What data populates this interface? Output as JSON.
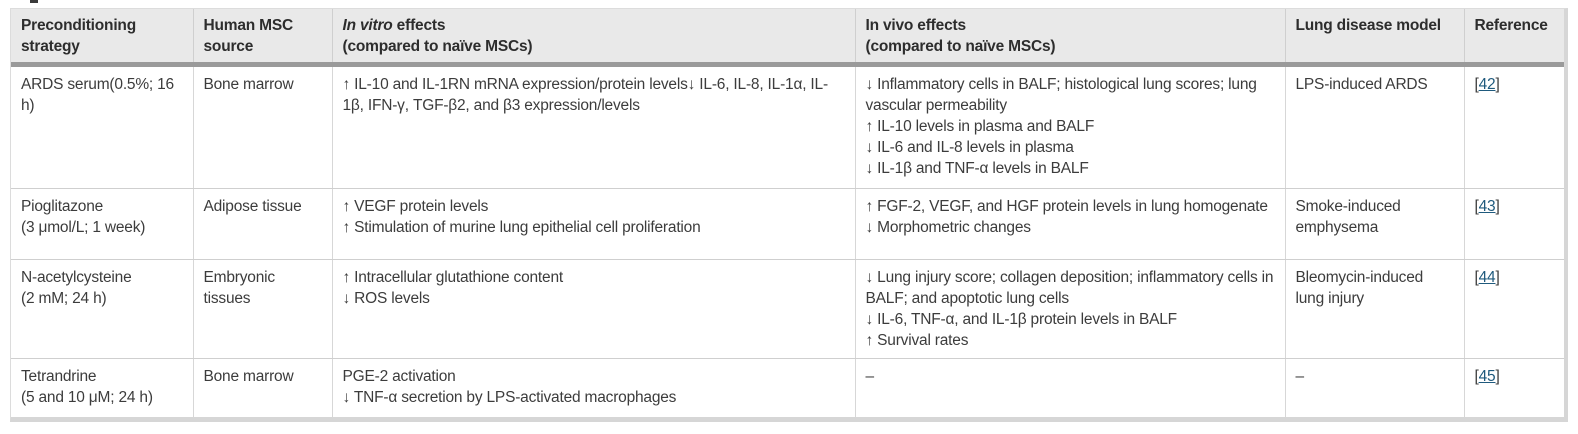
{
  "colors": {
    "link": "#1f5a7d",
    "header_bg": "#e9e9e9",
    "header_rule": "#9a9a9a"
  },
  "table": {
    "headers": [
      {
        "label": "Preconditioning strategy"
      },
      {
        "label": "Human MSC source"
      },
      {
        "label_italic": "In vitro",
        "label_rest": " effects",
        "sub": "(compared to naïve MSCs)"
      },
      {
        "label": "In vivo effects",
        "sub": "(compared to naïve MSCs)"
      },
      {
        "label": "Lung disease model"
      },
      {
        "label": "Reference"
      }
    ],
    "rows": [
      {
        "strategy": [
          "ARDS serum(0.5%; 16 h)"
        ],
        "source": [
          "Bone marrow"
        ],
        "in_vitro": [
          "↑ IL-10 and IL-1RN mRNA expression/protein levels↓ IL-6, IL-8, IL-1α, IL-1β, IFN-γ, TGF-β2, and β3 expression/levels"
        ],
        "in_vivo": [
          "↓ Inflammatory cells in BALF; histological lung scores; lung vascular permeability",
          "↑ IL-10 levels in plasma and BALF",
          "↓ IL-6 and IL-8 levels in plasma",
          "↓ IL-1β and TNF-α levels in BALF"
        ],
        "model": [
          "LPS-induced ARDS"
        ],
        "reference": {
          "prefix": "[",
          "number": "42",
          "suffix": "]"
        }
      },
      {
        "strategy": [
          "Pioglitazone",
          "(3 μmol/L; 1 week)"
        ],
        "source": [
          "Adipose tissue"
        ],
        "in_vitro": [
          "↑ VEGF protein levels",
          "↑ Stimulation of murine lung epithelial cell proliferation"
        ],
        "in_vivo": [
          "↑ FGF-2, VEGF, and HGF protein levels in lung homogenate",
          "↓ Morphometric changes"
        ],
        "model": [
          "Smoke-induced emphysema"
        ],
        "reference": {
          "prefix": "[",
          "number": "43",
          "suffix": "]"
        }
      },
      {
        "strategy": [
          "N-acetylcysteine",
          "(2 mM; 24 h)"
        ],
        "source": [
          "Embryonic tissues"
        ],
        "in_vitro": [
          "↑ Intracellular glutathione content",
          "↓ ROS levels"
        ],
        "in_vivo": [
          "↓ Lung injury score; collagen deposition; inflammatory cells in BALF; and apoptotic lung cells",
          "↓ IL-6, TNF-α, and IL-1β protein levels in BALF",
          "↑ Survival rates"
        ],
        "model": [
          "Bleomycin-induced lung injury"
        ],
        "reference": {
          "prefix": "[",
          "number": "44",
          "suffix": "]"
        }
      },
      {
        "strategy": [
          "Tetrandrine",
          "(5 and 10 μM; 24 h)"
        ],
        "source": [
          "Bone marrow"
        ],
        "in_vitro": [
          "PGE-2 activation",
          "↓ TNF-α secretion by LPS-activated macrophages"
        ],
        "in_vivo": [
          "–"
        ],
        "model": [
          "–"
        ],
        "reference": {
          "prefix": "[",
          "number": "45",
          "suffix": "]"
        }
      }
    ]
  }
}
